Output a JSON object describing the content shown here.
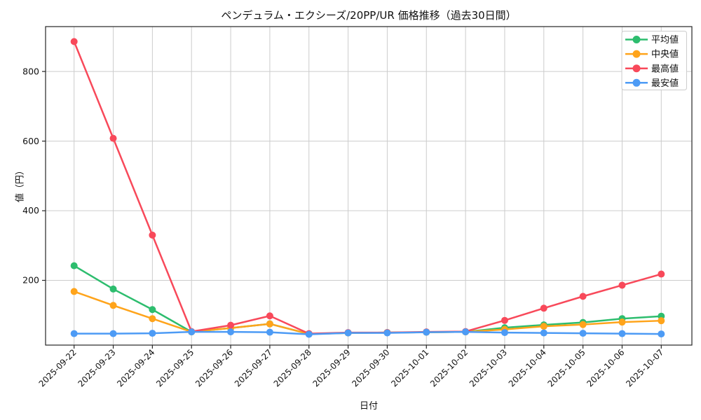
{
  "chart_data": {
    "type": "line",
    "title": "ペンデュラム・エクシーズ/20PP/UR 価格推移（過去30日間）",
    "xlabel": "日付",
    "ylabel": "値（円）",
    "x": [
      "2025-09-22",
      "2025-09-23",
      "2025-09-24",
      "2025-09-25",
      "2025-09-26",
      "2025-09-27",
      "2025-09-28",
      "2025-09-29",
      "2025-09-30",
      "2025-10-01",
      "2025-10-02",
      "2025-10-03",
      "2025-10-04",
      "2025-10-05",
      "2025-10-06",
      "2025-10-07"
    ],
    "series": [
      {
        "name": "平均値",
        "color": "#2dbd6e",
        "values": [
          242,
          175,
          116,
          52,
          63,
          75,
          46,
          49,
          50,
          51,
          52,
          64,
          72,
          79,
          90,
          97
        ]
      },
      {
        "name": "中央値",
        "color": "#ffa41b",
        "values": [
          168,
          128,
          90,
          52,
          63,
          75,
          46,
          49,
          50,
          51,
          52,
          59,
          68,
          73,
          80,
          84
        ]
      },
      {
        "name": "最高値",
        "color": "#f8495a",
        "values": [
          886,
          608,
          330,
          53,
          71,
          98,
          47,
          50,
          50,
          52,
          53,
          85,
          120,
          154,
          186,
          218
        ]
      },
      {
        "name": "最安値",
        "color": "#4d9bf5",
        "values": [
          47,
          47,
          48,
          52,
          52,
          51,
          45,
          49,
          49,
          51,
          52,
          50,
          49,
          48,
          47,
          46
        ]
      }
    ],
    "yticks": [
      200,
      400,
      600,
      800
    ],
    "ylim": [
      14,
      927
    ],
    "grid": true,
    "legend_position": "upper right",
    "grid_color": "#cccccc",
    "axis_color": "#262626",
    "tick_label_color": "#111111"
  }
}
